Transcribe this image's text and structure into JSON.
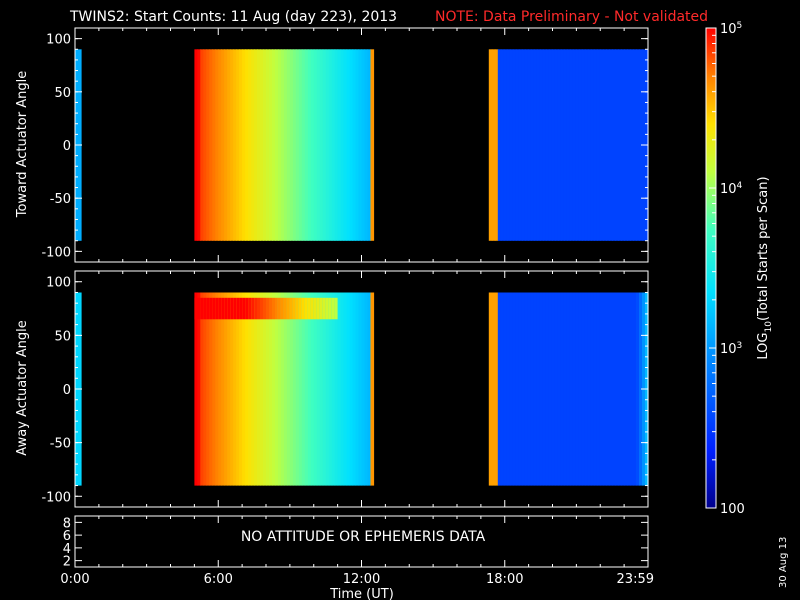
{
  "header": {
    "title": "TWINS2: Start Counts: 11 Aug (day 223), 2013",
    "note": "NOTE: Data Preliminary - Not validated",
    "note_color": "#ff2a2a"
  },
  "footer": {
    "date_stamp": "30 Aug 13"
  },
  "status": {
    "no_data_message": "NO ATTITUDE OR EPHEMERIS DATA"
  },
  "colorbar": {
    "label": "LOG10(Total Starts per Scan)",
    "ticks": [
      {
        "value": 100,
        "label": "100"
      },
      {
        "value": 1000,
        "label": "10^3"
      },
      {
        "value": 10000,
        "label": "10^4"
      },
      {
        "value": 100000,
        "label": "10^5"
      }
    ],
    "range": [
      100,
      100000
    ],
    "scale": "log",
    "colormap": "rainbow (blue-cyan-yellow-red)"
  },
  "chart_data": [
    {
      "type": "heatmap",
      "id": "toward",
      "ylabel": "Toward Actuator Angle",
      "ylim": [
        -110,
        110
      ],
      "yticks": [
        -100,
        -50,
        0,
        50,
        100
      ],
      "xlim_hours": [
        0,
        24
      ],
      "y_data_range": [
        -90,
        90
      ],
      "segments": [
        {
          "start": "0:00",
          "end": "0:15",
          "level_log10": 3.0
        },
        {
          "start": "5:00",
          "end": "12:30",
          "level_log10": 4.2,
          "trend": "decreasing from ~4.9 at 5:00 to ~3.1 at 12:30, with bright edges"
        },
        {
          "start": "17:20",
          "end": "24:00",
          "level_log10": 2.55,
          "trend": "bright edge near 17:20, then ~2.5"
        }
      ]
    },
    {
      "type": "heatmap",
      "id": "away",
      "ylabel": "Away Actuator Angle",
      "ylim": [
        -110,
        110
      ],
      "yticks": [
        -100,
        -50,
        0,
        50,
        100
      ],
      "xlim_hours": [
        0,
        24
      ],
      "y_data_range": [
        -90,
        90
      ],
      "segments": [
        {
          "start": "0:00",
          "end": "0:15",
          "level_log10": 3.0
        },
        {
          "start": "5:00",
          "end": "12:30",
          "level_log10": 4.2,
          "trend": "decreasing from ~4.9 at 5:00 to ~3.1 at 12:30, high band near +75"
        },
        {
          "start": "17:20",
          "end": "24:00",
          "level_log10": 2.5,
          "trend": "bright edge near 17:20, then ~2.5, rising near 24:00 top"
        }
      ]
    },
    {
      "type": "line",
      "id": "ephemeris",
      "yticks": [
        2,
        4,
        6,
        8
      ],
      "xticks": [
        "0:00",
        "6:00",
        "12:00",
        "18:00",
        "23:59"
      ],
      "xlabel": "Time (UT)",
      "series": []
    }
  ]
}
